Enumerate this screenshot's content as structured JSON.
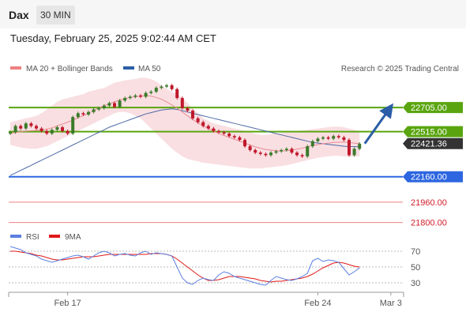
{
  "header": {
    "symbol": "Dax",
    "timeframe": "30 MIN"
  },
  "datetime": "Tuesday, February 25, 2025 9:02:44 AM CET",
  "legend": {
    "bb_label": "MA 20 + Bollinger Bands",
    "ma50_label": "MA 50",
    "credit": "Research © 2025 Trading Central",
    "rsi_label": "RSI",
    "rsi_ma_label": "9MA"
  },
  "colors": {
    "up_candle": "#3a7a2a",
    "down_candle": "#c0182b",
    "bb_fill": "#f7d4d8",
    "ma20": "#e88c94",
    "ma50": "#4d6aa6",
    "target_line": "#5aa50f",
    "pivot_line": "#2d66e0",
    "support_line": "#f08080",
    "support_text": "#d1202c",
    "rsi_line": "#5b7fe0",
    "rsi_ma": "#e01919",
    "current_bg": "#333333",
    "arrow": "#2b5ea7"
  },
  "chart_data": [
    {
      "type": "candlestick",
      "y_range": [
        21760,
        22880
      ],
      "x_ticks": [
        {
          "label": "Feb 17",
          "i": 11
        },
        {
          "label": "Feb 24",
          "i": 59
        },
        {
          "label": "Mar 3",
          "i": 73
        }
      ],
      "levels": [
        {
          "name": "resistance-2",
          "value": 22705,
          "label": "22705.00",
          "kind": "target"
        },
        {
          "name": "resistance-1",
          "value": 22515,
          "label": "22515.00",
          "kind": "target"
        },
        {
          "name": "current",
          "value": 22421.36,
          "label": "22421.36",
          "kind": "current"
        },
        {
          "name": "pivot",
          "value": 22160,
          "label": "22160.00",
          "kind": "pivot"
        },
        {
          "name": "support-1",
          "value": 21960,
          "label": "21960.00",
          "kind": "support"
        },
        {
          "name": "support-2",
          "value": 21800,
          "label": "21800.00",
          "kind": "support"
        }
      ],
      "forecast_arrow": {
        "from_i": 68,
        "from": 22421,
        "to_i": 73,
        "to": 22705
      },
      "closes": [
        22510,
        22560,
        22540,
        22580,
        22560,
        22540,
        22520,
        22500,
        22530,
        22550,
        22520,
        22500,
        22630,
        22660,
        22650,
        22670,
        22690,
        22700,
        22720,
        22740,
        22710,
        22760,
        22780,
        22790,
        22800,
        22790,
        22820,
        22830,
        22860,
        22870,
        22880,
        22850,
        22780,
        22700,
        22680,
        22620,
        22590,
        22560,
        22540,
        22520,
        22510,
        22500,
        22480,
        22470,
        22450,
        22400,
        22370,
        22350,
        22340,
        22330,
        22350,
        22360,
        22370,
        22380,
        22350,
        22330,
        22320,
        22400,
        22440,
        22460,
        22470,
        22460,
        22480,
        22470,
        22450,
        22330,
        22380,
        22420
      ],
      "ma20": [
        22500,
        22510,
        22515,
        22520,
        22522,
        22525,
        22528,
        22535,
        22545,
        22560,
        22575,
        22590,
        22605,
        22625,
        22640,
        22660,
        22680,
        22700,
        22720,
        22735,
        22750,
        22765,
        22775,
        22785,
        22790,
        22795,
        22800,
        22795,
        22785,
        22770,
        22750,
        22725,
        22700,
        22670,
        22640,
        22610,
        22585,
        22560,
        22540,
        22520,
        22500,
        22485,
        22470,
        22455,
        22440,
        22425,
        22410,
        22395,
        22385,
        22375,
        22370,
        22365,
        22362,
        22365,
        22370,
        22378,
        22385,
        22395,
        22405,
        22413,
        22420,
        22425,
        22430,
        22432,
        22434,
        22430,
        22425,
        22420
      ],
      "bb_upper": [
        22590,
        22600,
        22610,
        22620,
        22630,
        22640,
        22660,
        22690,
        22720,
        22750,
        22770,
        22780,
        22790,
        22800,
        22810,
        22830,
        22840,
        22850,
        22860,
        22880,
        22900,
        22910,
        22920,
        22925,
        22930,
        22940,
        22940,
        22930,
        22910,
        22880,
        22850,
        22830,
        22810,
        22780,
        22740,
        22700,
        22660,
        22620,
        22600,
        22580,
        22570,
        22560,
        22550,
        22540,
        22530,
        22520,
        22510,
        22500,
        22490,
        22490,
        22495,
        22500,
        22505,
        22510,
        22515,
        22520,
        22525,
        22530,
        22535,
        22540,
        22545,
        22550,
        22555,
        22555,
        22550,
        22540,
        22530,
        22520
      ],
      "bb_lower": [
        22410,
        22400,
        22390,
        22385,
        22380,
        22380,
        22390,
        22400,
        22420,
        22440,
        22460,
        22480,
        22500,
        22520,
        22540,
        22560,
        22580,
        22600,
        22620,
        22640,
        22660,
        22670,
        22670,
        22660,
        22640,
        22620,
        22580,
        22540,
        22500,
        22460,
        22420,
        22380,
        22350,
        22320,
        22300,
        22290,
        22280,
        22270,
        22265,
        22260,
        22255,
        22250,
        22245,
        22240,
        22235,
        22230,
        22225,
        22225,
        22225,
        22230,
        22235,
        22240,
        22245,
        22250,
        22260,
        22270,
        22280,
        22290,
        22300,
        22310,
        22315,
        22320,
        22325,
        22325,
        22320,
        22318,
        22318,
        22320
      ],
      "ma50": [
        22170,
        22190,
        22210,
        22230,
        22250,
        22270,
        22290,
        22310,
        22330,
        22350,
        22370,
        22390,
        22410,
        22430,
        22450,
        22470,
        22490,
        22510,
        22530,
        22550,
        22565,
        22580,
        22595,
        22610,
        22625,
        22640,
        22655,
        22665,
        22675,
        22685,
        22690,
        22695,
        22690,
        22680,
        22670,
        22660,
        22650,
        22640,
        22630,
        22620,
        22610,
        22600,
        22590,
        22580,
        22570,
        22560,
        22550,
        22540,
        22530,
        22520,
        22510,
        22500,
        22490,
        22480,
        22470,
        22460,
        22450,
        22440,
        22430,
        22425,
        22420,
        22415,
        22410,
        22405,
        22400,
        22398,
        22397,
        22396
      ]
    },
    {
      "type": "line",
      "name": "RSI panel",
      "y_range": [
        20,
        80
      ],
      "y_ticks": [
        70,
        50,
        30
      ],
      "rsi": [
        76,
        74,
        72,
        68,
        66,
        64,
        60,
        58,
        56,
        58,
        60,
        62,
        64,
        65,
        63,
        60,
        64,
        68,
        70,
        68,
        64,
        66,
        67,
        65,
        64,
        68,
        70,
        66,
        68,
        67,
        66,
        64,
        50,
        36,
        30,
        28,
        33,
        36,
        34,
        33,
        40,
        44,
        42,
        38,
        36,
        34,
        32,
        30,
        28,
        27,
        33,
        38,
        36,
        34,
        33,
        35,
        38,
        42,
        58,
        61,
        57,
        59,
        58,
        56,
        48,
        40,
        44,
        49
      ],
      "rsi_ma": [
        70,
        70,
        69,
        68,
        67,
        65,
        64,
        62,
        60,
        59,
        59,
        60,
        61,
        62,
        63,
        63,
        63,
        64,
        65,
        66,
        66,
        66,
        66,
        66,
        66,
        66,
        66,
        67,
        67,
        67,
        66,
        64,
        60,
        55,
        50,
        45,
        40,
        36,
        33,
        33,
        34,
        36,
        38,
        38,
        38,
        37,
        36,
        35,
        33,
        32,
        31,
        32,
        32,
        33,
        34,
        35,
        36,
        38,
        41,
        45,
        49,
        52,
        55,
        56,
        55,
        53,
        51,
        50
      ]
    }
  ]
}
